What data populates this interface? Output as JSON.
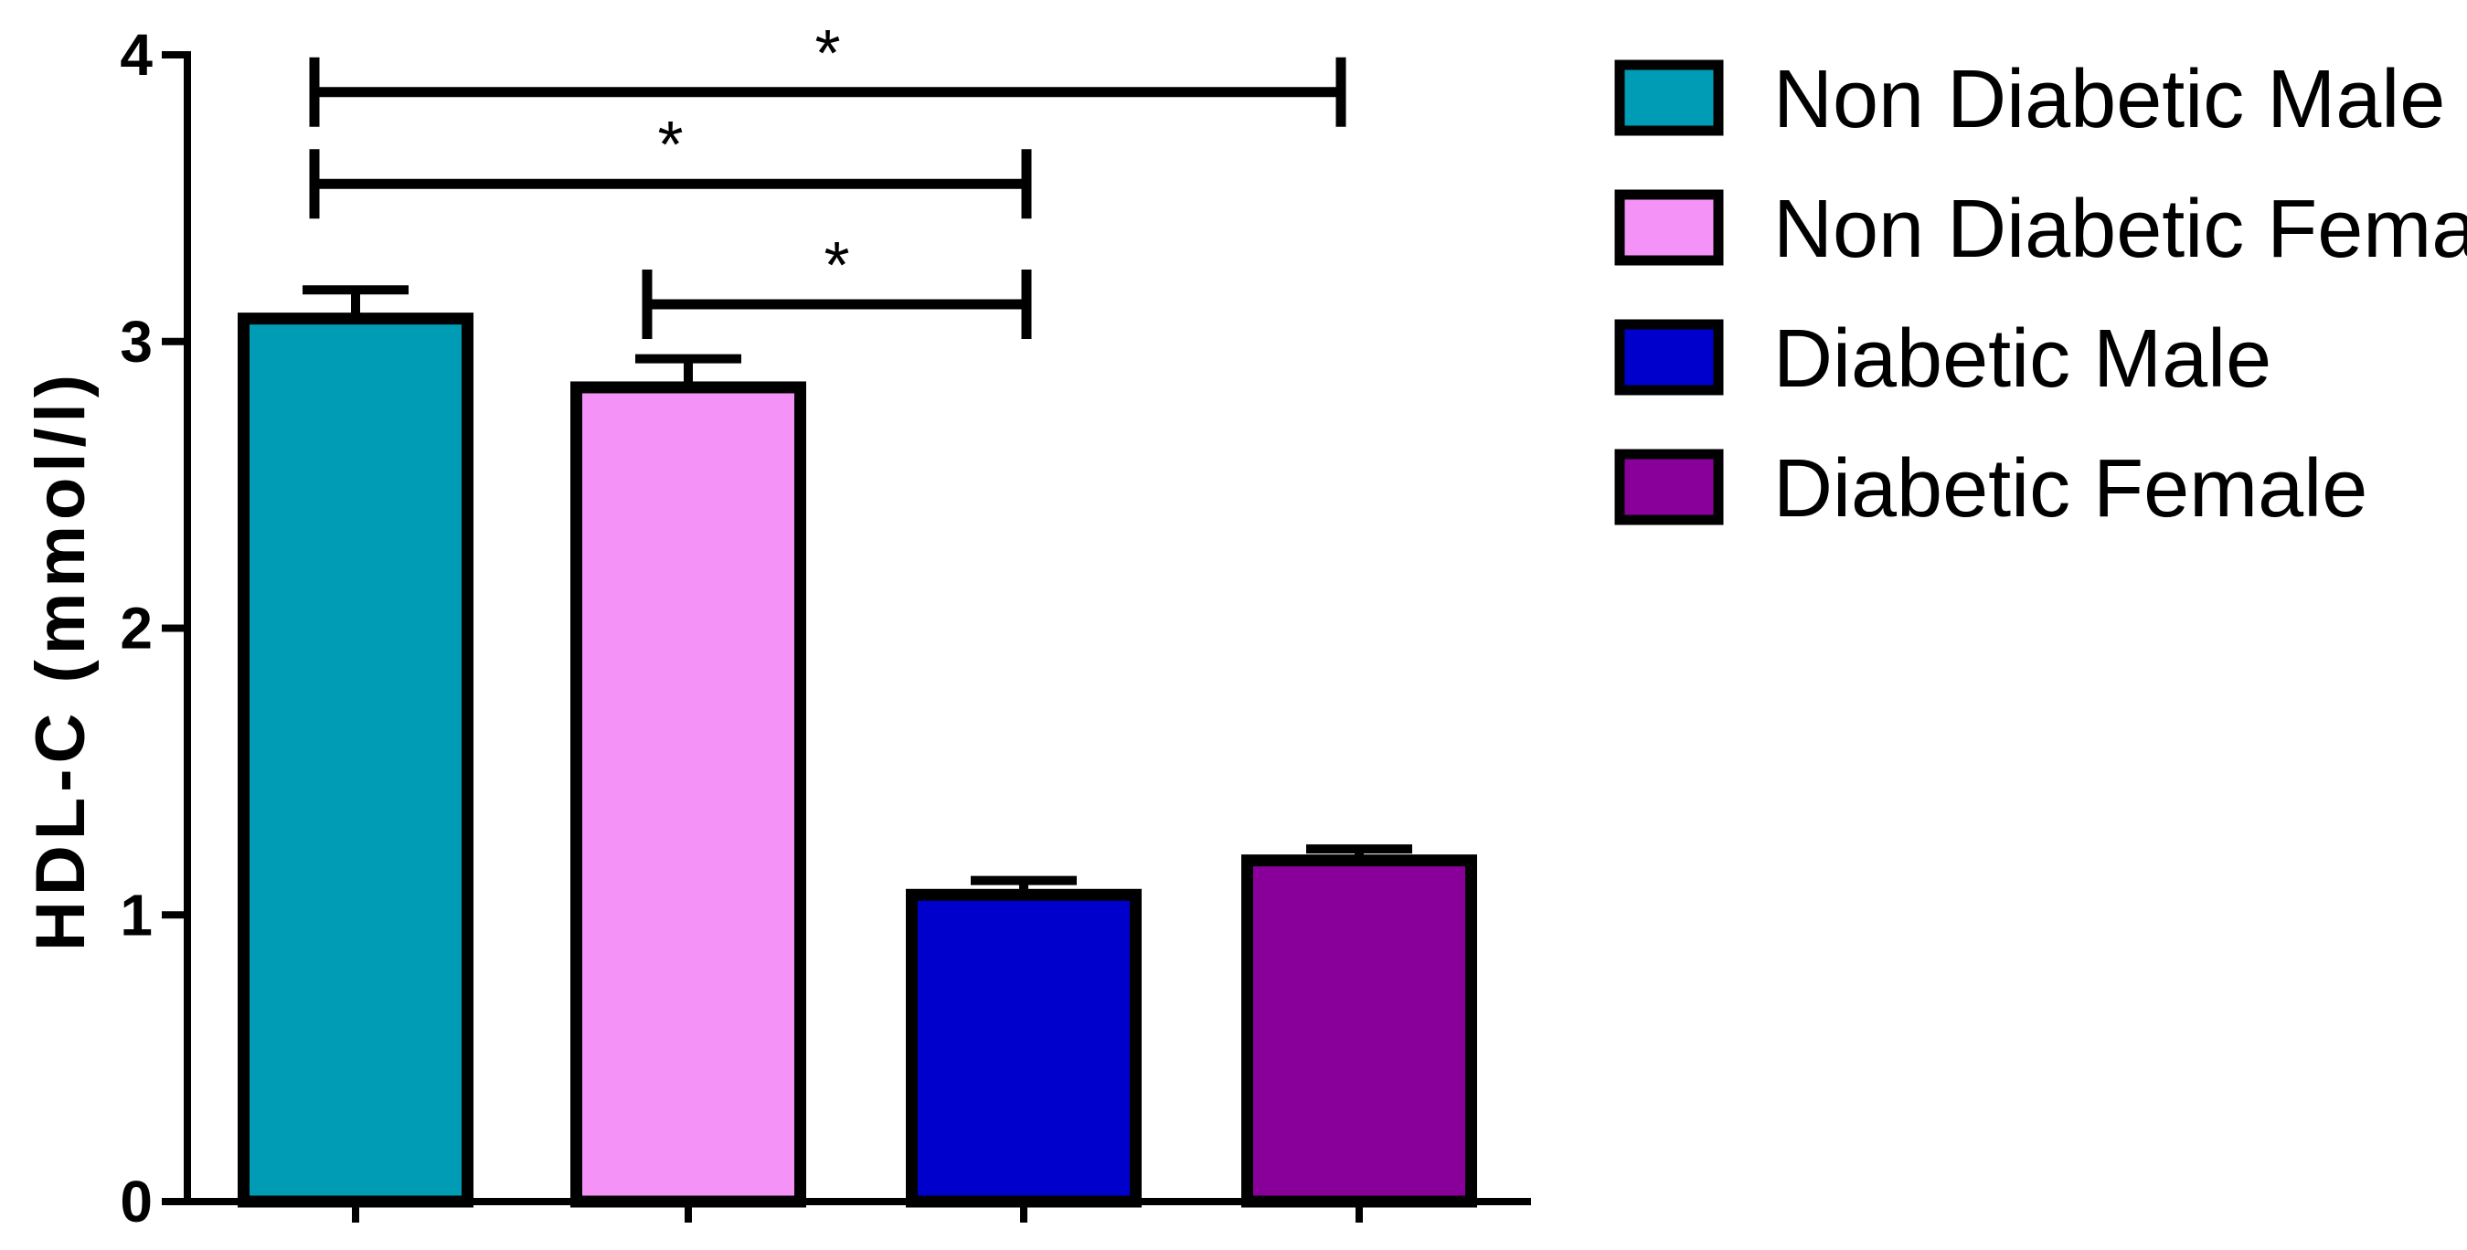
{
  "chart_data": {
    "type": "bar",
    "title": "",
    "xlabel": "",
    "ylabel": "HDL-C (mmol/l)",
    "ylim": [
      0,
      4
    ],
    "yticks": [
      "0",
      "1",
      "2",
      "3",
      "4"
    ],
    "categories": [
      "Non Diabetic Male",
      "Non Diabetic Female",
      "Diabetic Male",
      "Diabetic Female"
    ],
    "values": [
      3.08,
      2.84,
      1.07,
      1.19
    ],
    "errors": [
      0.1,
      0.1,
      0.05,
      0.04
    ],
    "colors": [
      "#009bb4",
      "#f592f8",
      "#0000cc",
      "#880099"
    ],
    "grid": false,
    "legend": {
      "position": "right",
      "entries": [
        "Non Diabetic Male",
        "Non Diabetic Female",
        "Diabetic Male",
        "Diabetic Female"
      ]
    },
    "significance": [
      {
        "from": 0,
        "to": 3,
        "y": 3.87,
        "label": "*"
      },
      {
        "from": 0,
        "to": 2,
        "y": 3.55,
        "label": "*"
      },
      {
        "from": 1,
        "to": 2,
        "y": 3.13,
        "label": "*"
      }
    ]
  }
}
